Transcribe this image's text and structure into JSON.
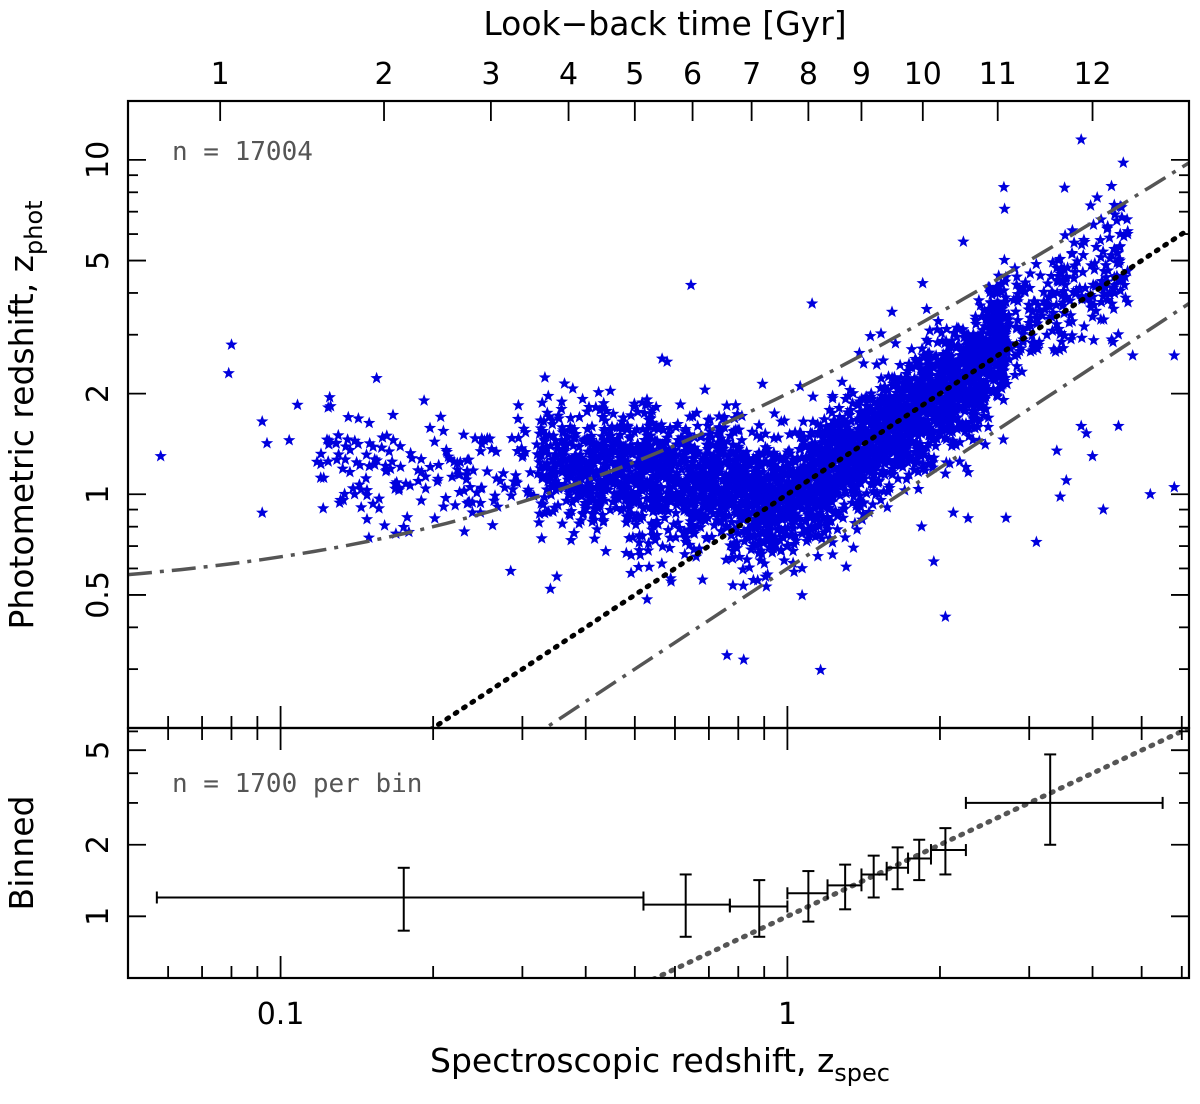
{
  "chart_data": [
    {
      "panel": "main",
      "type": "scatter",
      "title": "",
      "xlabel": "Spectroscopic redshift, z",
      "xlabel_sub": "spec",
      "ylabel": "Photometric redshift, z",
      "ylabel_sub": "phot",
      "xscale": "log",
      "yscale": "log",
      "xlim": [
        0.05,
        6.2
      ],
      "ylim": [
        0.2,
        15
      ],
      "ytick_labels": [
        "0.5",
        "1",
        "2",
        "5",
        "10"
      ],
      "ytick_values": [
        0.5,
        1,
        2,
        5,
        10
      ],
      "top_axis": {
        "label": "Look−back time [Gyr]",
        "tick_labels": [
          "1",
          "2",
          "3",
          "4",
          "5",
          "6",
          "7",
          "8",
          "9",
          "10",
          "11",
          "12"
        ],
        "tick_redshifts": [
          0.076,
          0.16,
          0.26,
          0.37,
          0.5,
          0.65,
          0.85,
          1.1,
          1.4,
          1.85,
          2.6,
          4.0
        ]
      },
      "annotation": "n = 17004",
      "n_points": 17004,
      "marker": "star",
      "color": "#0000dd",
      "series": [
        {
          "name": "one-to-one",
          "style": "dotted",
          "color": "#000000",
          "relation": "z_phot = z_spec"
        },
        {
          "name": "upper dispersion bound",
          "style": "dash-dot",
          "color": "#555555",
          "relation": "z_phot = 1.5 z_spec + 0.5"
        },
        {
          "name": "lower dispersion bound",
          "style": "dash-dot",
          "color": "#555555",
          "relation": "z_phot = 0.6 z_spec"
        }
      ],
      "outliers": [
        {
          "x": 0.058,
          "y": 1.3
        },
        {
          "x": 0.079,
          "y": 2.3
        },
        {
          "x": 0.08,
          "y": 2.8
        },
        {
          "x": 0.092,
          "y": 1.65
        },
        {
          "x": 0.092,
          "y": 0.88
        },
        {
          "x": 0.094,
          "y": 1.42
        },
        {
          "x": 0.104,
          "y": 1.45
        },
        {
          "x": 0.108,
          "y": 1.85
        },
        {
          "x": 0.118,
          "y": 1.25
        },
        {
          "x": 0.12,
          "y": 1.12
        },
        {
          "x": 0.125,
          "y": 1.95
        },
        {
          "x": 0.13,
          "y": 1.5
        },
        {
          "x": 0.136,
          "y": 1.7
        },
        {
          "x": 0.14,
          "y": 1.0
        },
        {
          "x": 0.76,
          "y": 0.33
        },
        {
          "x": 0.82,
          "y": 0.32
        },
        {
          "x": 2.05,
          "y": 0.43
        },
        {
          "x": 2.7,
          "y": 0.85
        },
        {
          "x": 3.1,
          "y": 0.72
        },
        {
          "x": 3.4,
          "y": 1.35
        },
        {
          "x": 3.55,
          "y": 1.1
        },
        {
          "x": 3.8,
          "y": 1.6
        },
        {
          "x": 4.0,
          "y": 1.3
        },
        {
          "x": 4.2,
          "y": 0.9
        },
        {
          "x": 4.5,
          "y": 1.6
        },
        {
          "x": 4.8,
          "y": 2.6
        },
        {
          "x": 5.2,
          "y": 1.0
        },
        {
          "x": 5.8,
          "y": 2.6
        },
        {
          "x": 5.8,
          "y": 1.05
        },
        {
          "x": 3.8,
          "y": 11.5
        },
        {
          "x": 4.6,
          "y": 9.8
        }
      ]
    },
    {
      "panel": "binned",
      "type": "errorbar",
      "ylabel": "Binned",
      "xscale": "log",
      "yscale": "log",
      "xlim": [
        0.05,
        6.2
      ],
      "ylim": [
        0.55,
        6.2
      ],
      "xtick_labels": [
        "0.1",
        "1"
      ],
      "xtick_values": [
        0.1,
        1
      ],
      "ytick_labels": [
        "1",
        "2",
        "5"
      ],
      "ytick_values": [
        1,
        2,
        5
      ],
      "annotation": "n = 1700 per bin",
      "reference_line": {
        "style": "dotted",
        "color": "#555555",
        "relation": "z_phot = z_spec"
      },
      "points": [
        {
          "x": 0.175,
          "y": 1.2,
          "xlo": 0.057,
          "xhi": 0.52,
          "ylo": 0.87,
          "yhi": 1.6
        },
        {
          "x": 0.63,
          "y": 1.12,
          "xlo": 0.52,
          "xhi": 0.77,
          "ylo": 0.82,
          "yhi": 1.5
        },
        {
          "x": 0.88,
          "y": 1.1,
          "xlo": 0.77,
          "xhi": 1.0,
          "ylo": 0.82,
          "yhi": 1.42
        },
        {
          "x": 1.1,
          "y": 1.25,
          "xlo": 1.0,
          "xhi": 1.2,
          "ylo": 0.95,
          "yhi": 1.55
        },
        {
          "x": 1.3,
          "y": 1.35,
          "xlo": 1.2,
          "xhi": 1.4,
          "ylo": 1.07,
          "yhi": 1.65
        },
        {
          "x": 1.48,
          "y": 1.5,
          "xlo": 1.4,
          "xhi": 1.57,
          "ylo": 1.2,
          "yhi": 1.8
        },
        {
          "x": 1.65,
          "y": 1.6,
          "xlo": 1.57,
          "xhi": 1.73,
          "ylo": 1.3,
          "yhi": 1.95
        },
        {
          "x": 1.82,
          "y": 1.75,
          "xlo": 1.73,
          "xhi": 1.92,
          "ylo": 1.42,
          "yhi": 2.1
        },
        {
          "x": 2.05,
          "y": 1.9,
          "xlo": 1.92,
          "xhi": 2.25,
          "ylo": 1.5,
          "yhi": 2.35
        },
        {
          "x": 3.3,
          "y": 3.0,
          "xlo": 2.25,
          "xhi": 5.5,
          "ylo": 2.0,
          "yhi": 4.8
        }
      ]
    }
  ]
}
